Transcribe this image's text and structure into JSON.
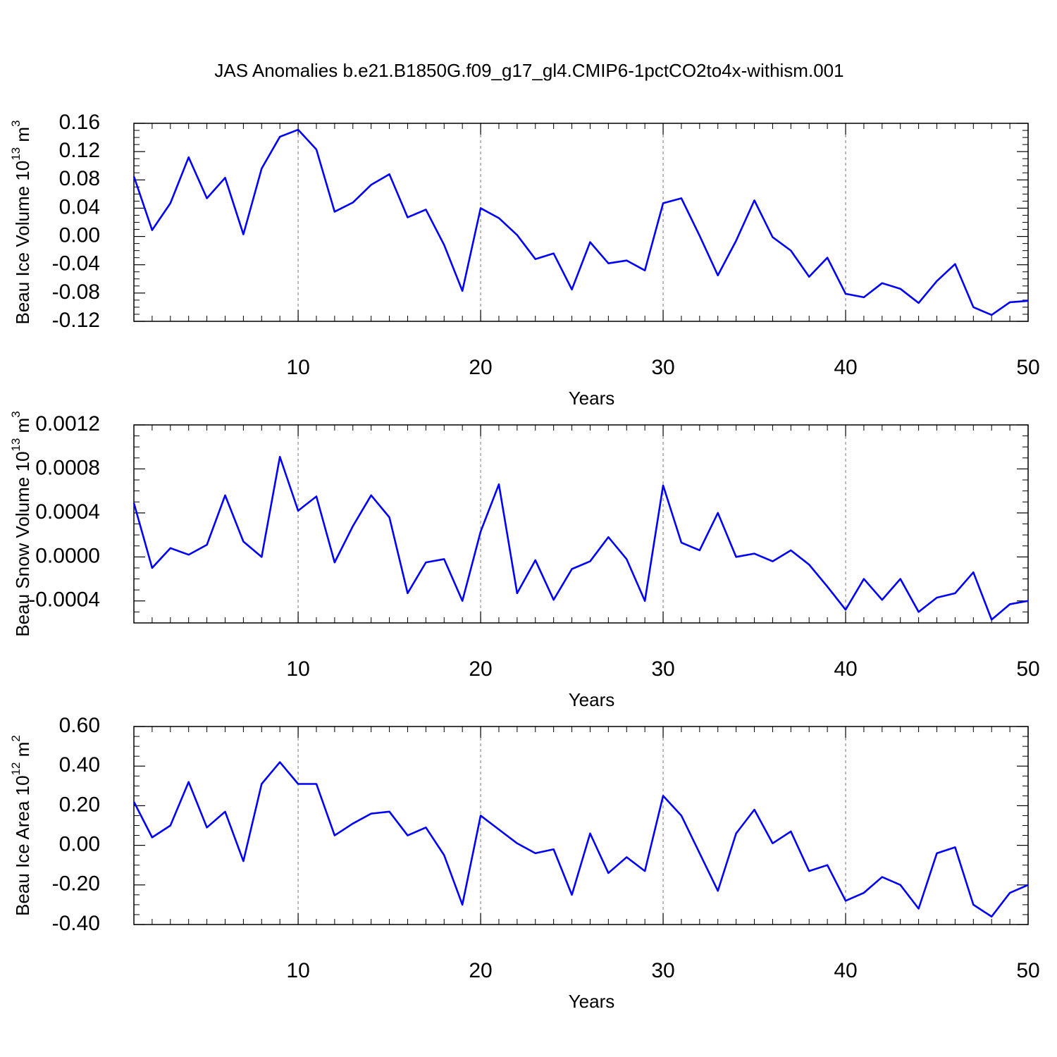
{
  "chart_data": [
    {
      "type": "line",
      "title": "JAS Anomalies b.e21.B1850G.f09_g17_gl4.CMIP6-1pctCO2to4x-withism.001",
      "xlabel": "Years",
      "ylabel": {
        "text": "Beau Ice Volume 10",
        "power": "13",
        "unit": " m",
        "unit_power": "3"
      },
      "x": [
        1,
        2,
        3,
        4,
        5,
        6,
        7,
        8,
        9,
        10,
        11,
        12,
        13,
        14,
        15,
        16,
        17,
        18,
        19,
        20,
        21,
        22,
        23,
        24,
        25,
        26,
        27,
        28,
        29,
        30,
        31,
        32,
        33,
        34,
        35,
        36,
        37,
        38,
        39,
        40,
        41,
        42,
        43,
        44,
        45,
        46,
        47,
        48,
        49,
        50
      ],
      "series": [
        {
          "color": "#0000ff",
          "values": [
            0.085,
            0.009,
            0.047,
            0.112,
            0.054,
            0.083,
            0.003,
            0.096,
            0.141,
            0.151,
            0.123,
            0.035,
            0.048,
            0.073,
            0.088,
            0.027,
            0.038,
            -0.012,
            -0.077,
            0.04,
            0.026,
            0.002,
            -0.032,
            -0.024,
            -0.075,
            -0.008,
            -0.038,
            -0.034,
            -0.048,
            0.047,
            0.054,
            0.001,
            -0.055,
            -0.006,
            0.051,
            -0.001,
            -0.02,
            -0.057,
            -0.03,
            -0.081,
            -0.086,
            -0.066,
            -0.074,
            -0.094,
            -0.063,
            -0.039,
            -0.1,
            -0.111,
            -0.093,
            -0.091
          ]
        }
      ],
      "xlim": [
        1,
        50
      ],
      "xticks": [
        10,
        20,
        30,
        40,
        50
      ],
      "ylim": [
        -0.12,
        0.16
      ],
      "yticks": [
        -0.12,
        -0.08,
        -0.04,
        {
          "value": 0,
          "label": "0.00"
        },
        0.04,
        0.08,
        0.12,
        0.16
      ],
      "grid": "x"
    },
    {
      "type": "line",
      "xlabel": "Years",
      "ylabel": {
        "text": "Beau Snow Volume 10",
        "power": "13",
        "unit": " m",
        "unit_power": "3"
      },
      "x": [
        1,
        2,
        3,
        4,
        5,
        6,
        7,
        8,
        9,
        10,
        11,
        12,
        13,
        14,
        15,
        16,
        17,
        18,
        19,
        20,
        21,
        22,
        23,
        24,
        25,
        26,
        27,
        28,
        29,
        30,
        31,
        32,
        33,
        34,
        35,
        36,
        37,
        38,
        39,
        40,
        41,
        42,
        43,
        44,
        45,
        46,
        47,
        48,
        49,
        50
      ],
      "series": [
        {
          "color": "#0000ff",
          "values": [
            0.00049,
            -0.0001,
            8e-05,
            2e-05,
            0.00011,
            0.00056,
            0.00014,
            0.0,
            0.00091,
            0.00042,
            0.00055,
            -5e-05,
            0.00028,
            0.00056,
            0.00036,
            -0.00033,
            -5e-05,
            -2e-05,
            -0.0004,
            0.00023,
            0.00066,
            -0.00033,
            -3e-05,
            -0.00039,
            -0.00011,
            -4e-05,
            0.00018,
            -2e-05,
            -0.0004,
            0.00065,
            0.00013,
            6e-05,
            0.0004,
            0.0,
            3e-05,
            -4e-05,
            6e-05,
            -7e-05,
            -0.00027,
            -0.00048,
            -0.0002,
            -0.00039,
            -0.0002,
            -0.0005,
            -0.00037,
            -0.00033,
            -0.00014,
            -0.00057,
            -0.00043,
            -0.0004
          ]
        }
      ],
      "xlim": [
        1,
        50
      ],
      "xticks": [
        10,
        20,
        30,
        40,
        50
      ],
      "ylim": [
        -0.0006,
        0.0012
      ],
      "yticks": [
        -0.0004,
        {
          "value": 0,
          "label": "0.0000"
        },
        0.0004,
        0.0008,
        0.0012
      ],
      "grid": "x"
    },
    {
      "type": "line",
      "xlabel": "Years",
      "ylabel": {
        "text": "Beau Ice Area 10",
        "power": "12",
        "unit": " m",
        "unit_power": "2"
      },
      "x": [
        1,
        2,
        3,
        4,
        5,
        6,
        7,
        8,
        9,
        10,
        11,
        12,
        13,
        14,
        15,
        16,
        17,
        18,
        19,
        20,
        21,
        22,
        23,
        24,
        25,
        26,
        27,
        28,
        29,
        30,
        31,
        32,
        33,
        34,
        35,
        36,
        37,
        38,
        39,
        40,
        41,
        42,
        43,
        44,
        45,
        46,
        47,
        48,
        49,
        50
      ],
      "series": [
        {
          "color": "#0000ff",
          "values": [
            0.22,
            0.04,
            0.1,
            0.32,
            0.09,
            0.17,
            -0.08,
            0.31,
            0.42,
            0.31,
            0.31,
            0.05,
            0.11,
            0.16,
            0.17,
            0.05,
            0.09,
            -0.05,
            -0.3,
            0.15,
            0.08,
            0.01,
            -0.04,
            -0.02,
            -0.25,
            0.06,
            -0.14,
            -0.06,
            -0.13,
            0.25,
            0.15,
            -0.04,
            -0.23,
            0.06,
            0.18,
            0.01,
            0.07,
            -0.13,
            -0.1,
            -0.28,
            -0.24,
            -0.16,
            -0.2,
            -0.32,
            -0.04,
            -0.01,
            -0.3,
            -0.36,
            -0.24,
            -0.2
          ]
        }
      ],
      "xlim": [
        1,
        50
      ],
      "xticks": [
        10,
        20,
        30,
        40,
        50
      ],
      "ylim": [
        -0.4,
        0.6
      ],
      "yticks": [
        {
          "value": -0.4,
          "label": "-0.40"
        },
        {
          "value": -0.2,
          "label": "-0.20"
        },
        {
          "value": 0,
          "label": "0.00"
        },
        {
          "value": 0.2,
          "label": "0.20"
        },
        {
          "value": 0.4,
          "label": "0.40"
        },
        {
          "value": 0.6,
          "label": "0.60"
        }
      ],
      "grid": "x"
    }
  ]
}
